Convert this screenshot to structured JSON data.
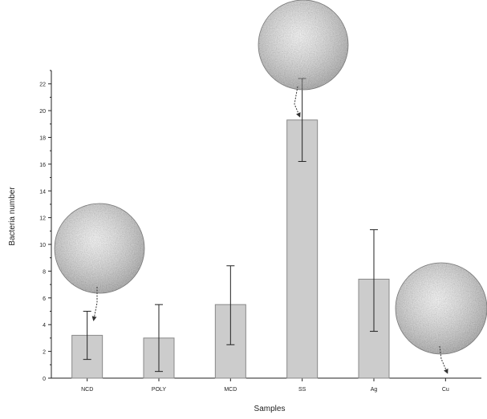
{
  "chart_data": {
    "type": "bar",
    "xlabel": "Samples",
    "ylabel": "Bacteria number",
    "categories": [
      "NCD",
      "POLY",
      "MCD",
      "SS",
      "Ag",
      "Cu"
    ],
    "values": [
      3.2,
      3.0,
      5.5,
      19.3,
      7.4,
      0
    ],
    "error_upper": [
      5.0,
      5.5,
      8.4,
      22.4,
      11.1,
      0
    ],
    "error_lower": [
      1.4,
      0.5,
      2.5,
      16.2,
      3.5,
      0
    ],
    "ylim": [
      0,
      23
    ],
    "yticks": [
      0,
      2,
      4,
      6,
      8,
      10,
      12,
      14,
      16,
      18,
      20,
      22
    ],
    "grid": false,
    "bar_color": "#cccccc",
    "bar_stroke": "#888888",
    "insets": [
      {
        "category": "NCD",
        "image": "micrograph-ncd"
      },
      {
        "category": "SS",
        "image": "micrograph-ss"
      },
      {
        "category": "Cu",
        "image": "micrograph-cu"
      }
    ]
  }
}
